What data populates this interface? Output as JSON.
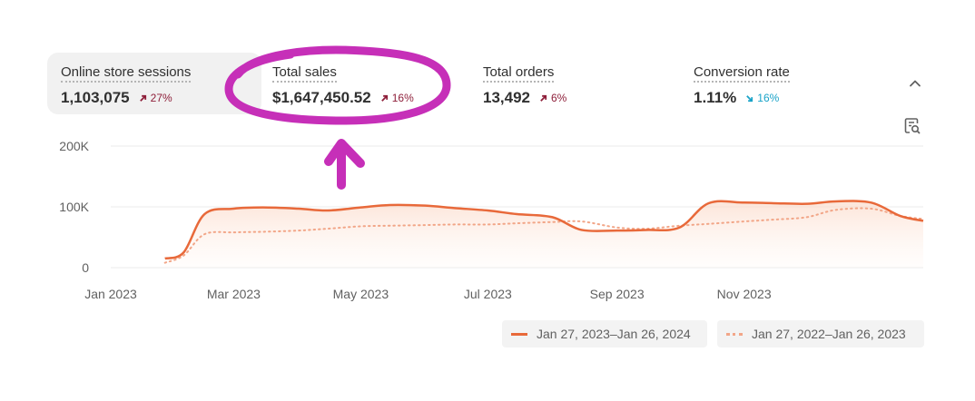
{
  "metrics": [
    {
      "label": "Online store sessions",
      "value": "1,103,075",
      "change": "27%",
      "direction": "up"
    },
    {
      "label": "Total sales",
      "value": "$1,647,450.52",
      "change": "16%",
      "direction": "up"
    },
    {
      "label": "Total orders",
      "value": "13,492",
      "change": "6%",
      "direction": "up"
    },
    {
      "label": "Conversion rate",
      "value": "1.11%",
      "change": "16%",
      "direction": "down"
    }
  ],
  "icons": {
    "collapse": "chevron-up-icon",
    "report": "view-report-icon",
    "trend_up": "arrow-up-right-icon",
    "trend_down": "arrow-down-right-icon"
  },
  "colors": {
    "current_series": "#e8693a",
    "previous_series": "#f2a688",
    "trend_up": "#8e1f3a",
    "trend_down": "#1aa3c8",
    "annotation": "#c62fb8",
    "active_metric_bg": "#f1f1f1"
  },
  "chart_data": {
    "type": "area",
    "x_ticks": [
      "Jan 2023",
      "Mar 2023",
      "May 2023",
      "Jul 2023",
      "Sep 2023",
      "Nov 2023"
    ],
    "y_ticks": [
      "0",
      "100K",
      "200K"
    ],
    "ylim": [
      0,
      200000
    ],
    "x": [
      "2023-01-27",
      "2023-02-05",
      "2023-02-15",
      "2023-03-01",
      "2023-03-15",
      "2023-04-01",
      "2023-04-15",
      "2023-05-01",
      "2023-05-15",
      "2023-06-01",
      "2023-06-15",
      "2023-07-01",
      "2023-07-15",
      "2023-08-01",
      "2023-08-15",
      "2023-09-01",
      "2023-09-15",
      "2023-10-01",
      "2023-10-15",
      "2023-11-01",
      "2023-11-15",
      "2023-12-01",
      "2023-12-15",
      "2024-01-01",
      "2024-01-15",
      "2024-01-26"
    ],
    "series": [
      {
        "name": "Jan 27, 2023–Jan 26, 2024",
        "style": "solid",
        "values": [
          15000,
          25000,
          88000,
          97000,
          99000,
          97000,
          94000,
          99000,
          103000,
          102000,
          98000,
          94000,
          88000,
          83000,
          62000,
          61000,
          62000,
          66000,
          106000,
          107000,
          106000,
          105000,
          109000,
          107000,
          85000,
          77000
        ]
      },
      {
        "name": "Jan 27, 2022–Jan 26, 2023",
        "style": "dotted",
        "values": [
          8000,
          20000,
          55000,
          58000,
          59000,
          61000,
          64000,
          68000,
          69000,
          70000,
          71000,
          71000,
          73000,
          75000,
          76000,
          66000,
          64000,
          69000,
          72000,
          76000,
          79000,
          83000,
          95000,
          97000,
          85000,
          80000
        ]
      }
    ],
    "legend_position": "bottom-right",
    "grid": true
  },
  "annotation": {
    "type": "hand-drawn circle and arrow",
    "target": "Total sales"
  }
}
